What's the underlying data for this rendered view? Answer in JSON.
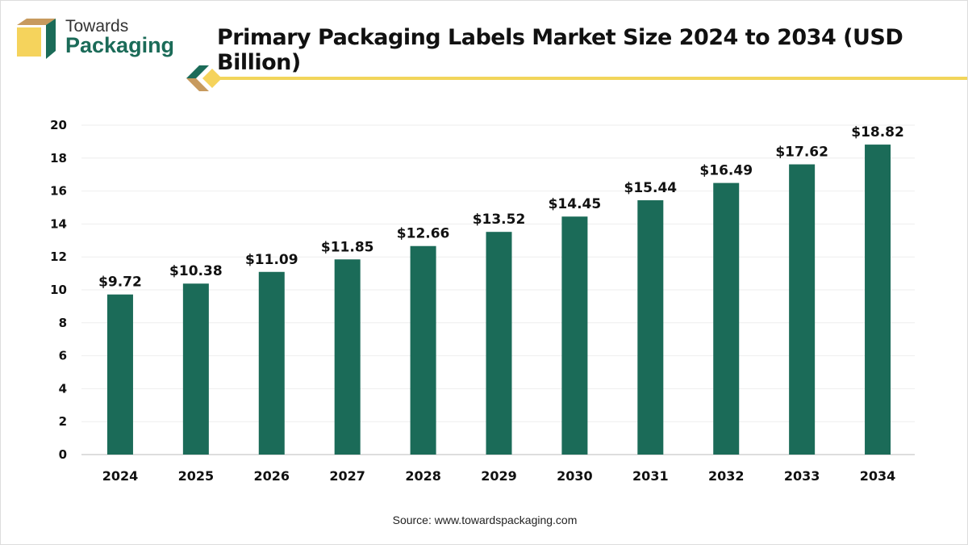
{
  "logo": {
    "line1": "Towards",
    "line2": "Packaging"
  },
  "title": "Primary Packaging Labels Market Size 2024 to 2034 (USD Billion)",
  "source": "Source: www.towardspackaging.com",
  "colors": {
    "bar": "#1b6b58",
    "accent": "#f2d55a",
    "logo_brown": "#c79a5e"
  },
  "chart_data": {
    "type": "bar",
    "title": "Primary Packaging Labels Market Size 2024 to 2034 (USD Billion)",
    "categories": [
      "2024",
      "2025",
      "2026",
      "2027",
      "2028",
      "2029",
      "2030",
      "2031",
      "2032",
      "2033",
      "2034"
    ],
    "values": [
      9.72,
      10.38,
      11.09,
      11.85,
      12.66,
      13.52,
      14.45,
      15.44,
      16.49,
      17.62,
      18.82
    ],
    "data_labels": [
      "$9.72",
      "$10.38",
      "$11.09",
      "$11.85",
      "$12.66",
      "$13.52",
      "$14.45",
      "$15.44",
      "$16.49",
      "$17.62",
      "$18.82"
    ],
    "yticks": [
      0,
      2,
      4,
      6,
      8,
      10,
      12,
      14,
      16,
      18,
      20
    ],
    "ylim": [
      0,
      20
    ],
    "grid": true,
    "xlabel": "",
    "ylabel": ""
  }
}
